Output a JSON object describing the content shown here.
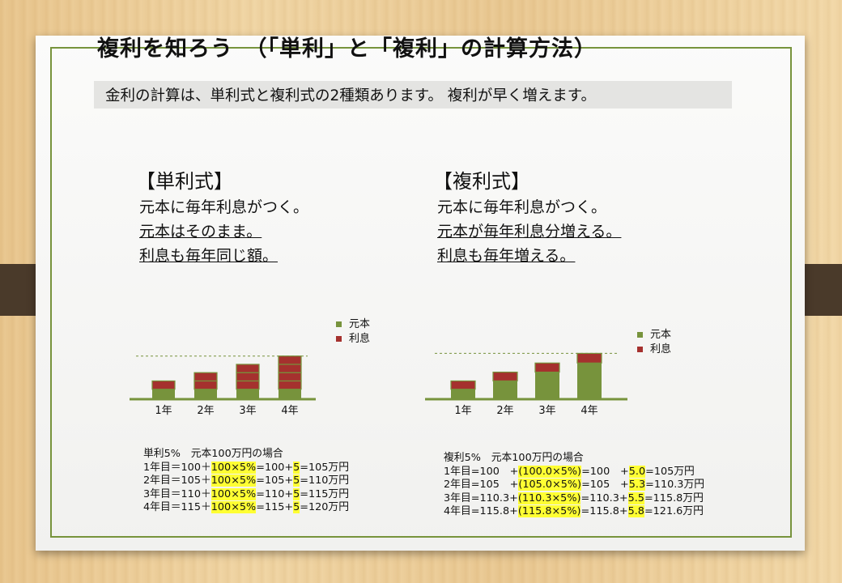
{
  "title": "複利を知ろう　（「単利」と「複利」の計算方法）",
  "subtitle": "金利の計算は、単利式と複利式の2種類あります。 複利が早く増えます。",
  "colors": {
    "principal": "#77933c",
    "interest": "#a5312e",
    "border": "#77933c",
    "highlight": "#ffff33"
  },
  "simple": {
    "heading": "【単利式】",
    "lines": [
      "元本に毎年利息がつく。",
      "元本はそのまま。",
      "利息も毎年同じ額。"
    ],
    "calc_title": "単利5%　元本100万円の場合",
    "calc_rows": [
      {
        "pre": "1年目＝100＋",
        "hl1": "100×5%",
        "mid": "=100+",
        "hl2": "5",
        "post": "=105万円"
      },
      {
        "pre": "2年目＝105＋",
        "hl1": "100×5%",
        "mid": "=105+",
        "hl2": "5",
        "post": "=110万円"
      },
      {
        "pre": "3年目＝110＋",
        "hl1": "100×5%",
        "mid": "=110+",
        "hl2": "5",
        "post": "=115万円"
      },
      {
        "pre": "4年目＝115＋",
        "hl1": "100×5%",
        "mid": "=115+",
        "hl2": "5",
        "post": "=120万円"
      }
    ]
  },
  "compound": {
    "heading": "【複利式】",
    "lines": [
      "元本に毎年利息がつく。",
      "元本が毎年利息分増える。",
      "利息も毎年増える。"
    ],
    "calc_title": "複利5%　元本100万円の場合",
    "calc_rows": [
      {
        "pre": "1年目=100　+",
        "hl1": "(100.0×5%)",
        "mid": "=100　+",
        "hl2": "5.0",
        "post": "=105万円"
      },
      {
        "pre": "2年目=105　+",
        "hl1": "(105.0×5%)",
        "mid": "=105　+",
        "hl2": "5.3",
        "post": "=110.3万円"
      },
      {
        "pre": "3年目=110.3+",
        "hl1": "(110.3×5%)",
        "mid": "=110.3+",
        "hl2": "5.5",
        "post": "=115.8万円"
      },
      {
        "pre": "4年目=115.8+",
        "hl1": "(115.8×5%)",
        "mid": "=115.8+",
        "hl2": "5.8",
        "post": "=121.6万円"
      }
    ]
  },
  "chart_data": [
    {
      "type": "bar",
      "stacked": true,
      "categories": [
        "1年",
        "2年",
        "3年",
        "4年"
      ],
      "series": [
        {
          "name": "元本",
          "values": [
            100,
            100,
            100,
            100
          ]
        },
        {
          "name": "利息",
          "segments": [
            [
              5
            ],
            [
              5,
              5
            ],
            [
              5,
              5,
              5
            ],
            [
              5,
              5,
              5,
              5
            ]
          ]
        }
      ],
      "legend": "right"
    },
    {
      "type": "bar",
      "stacked": true,
      "categories": [
        "1年",
        "2年",
        "3年",
        "4年"
      ],
      "series": [
        {
          "name": "元本",
          "values": [
            100,
            105,
            110.3,
            115.8
          ]
        },
        {
          "name": "利息",
          "segments": [
            [
              5
            ],
            [
              5.3
            ],
            [
              5.5
            ],
            [
              5.8
            ]
          ]
        }
      ],
      "legend": "right"
    }
  ]
}
